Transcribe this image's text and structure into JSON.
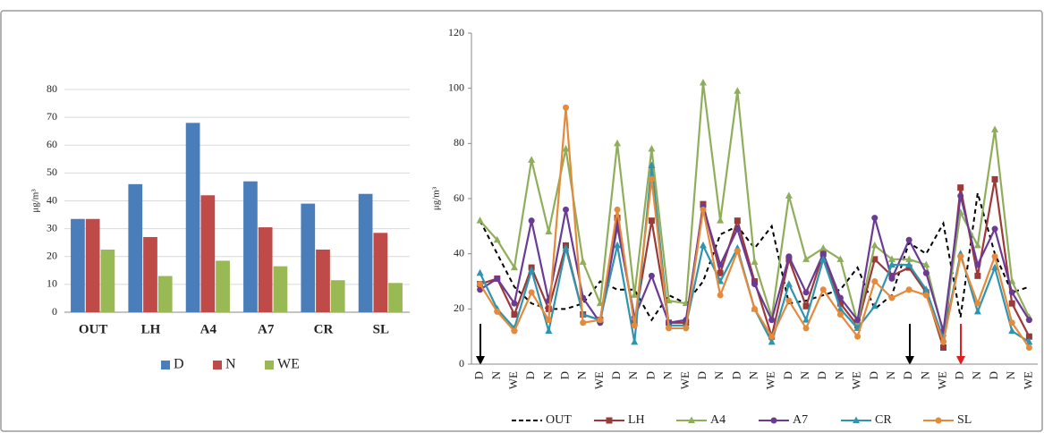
{
  "chart_data": [
    {
      "type": "bar",
      "y_label": "μg/m³",
      "categories": [
        "OUT",
        "LH",
        "A4",
        "A7",
        "CR",
        "SL"
      ],
      "series": [
        {
          "name": "D",
          "color": "#4a7ebb",
          "values": [
            33.5,
            46,
            68,
            47,
            39,
            42.5
          ]
        },
        {
          "name": "N",
          "color": "#be4b48",
          "values": [
            33.5,
            27,
            42,
            30.5,
            22.5,
            28.5
          ]
        },
        {
          "name": "WE",
          "color": "#98b954",
          "values": [
            22.5,
            13,
            18.5,
            16.5,
            11.5,
            10.5
          ]
        }
      ],
      "ylim": [
        0,
        80
      ],
      "yticks": [
        0,
        10,
        20,
        30,
        40,
        50,
        60,
        70,
        80
      ],
      "grid": true,
      "legend": "bottom"
    },
    {
      "type": "line",
      "y_label": "μg/m³",
      "categories": [
        "D",
        "N",
        "WE",
        "D",
        "N",
        "D",
        "N",
        "WE",
        "D",
        "N",
        "D",
        "N",
        "WE",
        "D",
        "N",
        "D",
        "N",
        "WE",
        "D",
        "N",
        "D",
        "N",
        "WE",
        "D",
        "N",
        "D",
        "N",
        "WE",
        "D",
        "N",
        "D",
        "N",
        "WE"
      ],
      "series": [
        {
          "name": "OUT",
          "color": "#000000",
          "dashed": true,
          "marker": "none",
          "values": [
            52,
            40,
            28,
            22,
            20,
            20,
            22,
            30,
            27,
            27,
            16,
            25,
            22,
            30,
            47,
            50,
            42,
            50,
            22,
            23,
            25,
            27,
            35,
            20,
            25,
            44,
            40,
            51,
            17,
            62,
            40,
            26,
            28
          ]
        },
        {
          "name": "LH",
          "color": "#9b3a38",
          "marker": "square",
          "values": [
            29,
            31,
            18,
            35,
            20,
            43,
            18,
            16,
            53,
            15,
            52,
            15,
            15,
            58,
            33,
            52,
            30,
            10,
            38,
            21,
            40,
            22,
            14,
            38,
            32,
            35,
            26,
            6,
            64,
            32,
            67,
            22,
            10
          ]
        },
        {
          "name": "A4",
          "color": "#8fae5a",
          "marker": "triangle",
          "values": [
            52,
            45,
            35,
            74,
            48,
            78,
            37,
            22,
            80,
            25,
            78,
            23,
            22,
            102,
            52,
            99,
            37,
            17,
            61,
            38,
            42,
            38,
            15,
            43,
            38,
            38,
            36,
            11,
            55,
            43,
            85,
            30,
            17
          ]
        },
        {
          "name": "A7",
          "color": "#6b3a94",
          "marker": "circle",
          "values": [
            27,
            31,
            22,
            52,
            23,
            56,
            24,
            15,
            50,
            17,
            32,
            15,
            16,
            57,
            36,
            49,
            29,
            16,
            39,
            26,
            40,
            24,
            16,
            53,
            31,
            45,
            33,
            12,
            61,
            36,
            49,
            26,
            16
          ]
        },
        {
          "name": "CR",
          "color": "#2e94b0",
          "marker": "triangle",
          "values": [
            33,
            20,
            13,
            34,
            12,
            42,
            18,
            16,
            43,
            8,
            72,
            14,
            14,
            43,
            30,
            42,
            20,
            8,
            29,
            16,
            38,
            20,
            13,
            21,
            36,
            36,
            27,
            9,
            40,
            19,
            35,
            12,
            8
          ]
        },
        {
          "name": "SL",
          "color": "#e58a3a",
          "marker": "circle",
          "values": [
            29,
            19,
            12,
            26,
            16,
            93,
            15,
            16,
            56,
            14,
            67,
            13,
            13,
            56,
            25,
            41,
            20,
            10,
            23,
            13,
            27,
            18,
            10,
            30,
            24,
            27,
            25,
            8,
            39,
            22,
            39,
            15,
            6
          ]
        }
      ],
      "ylim": [
        0,
        120
      ],
      "yticks": [
        0,
        20,
        40,
        60,
        80,
        100,
        120
      ],
      "grid": false,
      "legend": "bottom"
    }
  ]
}
